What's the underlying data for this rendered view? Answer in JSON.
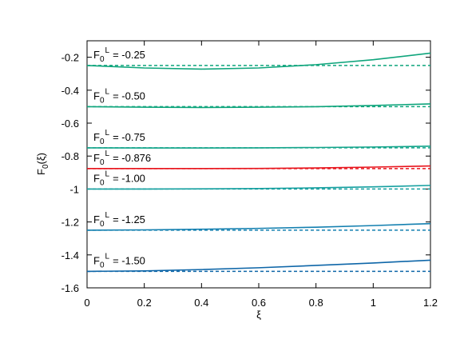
{
  "chart_data": {
    "type": "line",
    "x_label": "ξ",
    "y_label": {
      "base": "F",
      "sub": "0",
      "rest": "(ξ)"
    },
    "x": [
      0,
      0.2,
      0.4,
      0.6,
      0.8,
      1.0,
      1.2
    ],
    "xlim": [
      0,
      1.2
    ],
    "xticks": [
      0,
      0.2,
      0.4,
      0.6,
      0.8,
      1,
      1.2
    ],
    "ylim": [
      -1.6,
      -0.1
    ],
    "yticks": [
      -1.6,
      -1.4,
      -1.2,
      -1,
      -0.8,
      -0.6,
      -0.4,
      -0.2
    ],
    "grid": false,
    "series": [
      {
        "name": {
          "base": "F",
          "sub": "0",
          "sup": "L",
          "text": "= -0.25"
        },
        "color": "#0fa57c",
        "reference": -0.25,
        "values": [
          -0.25,
          -0.265,
          -0.272,
          -0.265,
          -0.245,
          -0.215,
          -0.175
        ]
      },
      {
        "name": {
          "base": "F",
          "sub": "0",
          "sup": "L",
          "text": "= -0.50"
        },
        "color": "#0fa57c",
        "reference": -0.5,
        "values": [
          -0.5,
          -0.503,
          -0.505,
          -0.503,
          -0.5,
          -0.493,
          -0.483
        ]
      },
      {
        "name": {
          "base": "F",
          "sub": "0",
          "sup": "L",
          "text": "= -0.75"
        },
        "color": "#12a48a",
        "reference": -0.75,
        "values": [
          -0.75,
          -0.751,
          -0.751,
          -0.75,
          -0.748,
          -0.745,
          -0.74
        ]
      },
      {
        "name": {
          "base": "F",
          "sub": "0",
          "sup": "L",
          "text": "= -0.876"
        },
        "color": "#e8141c",
        "reference": -0.876,
        "values": [
          -0.876,
          -0.876,
          -0.876,
          -0.875,
          -0.872,
          -0.867,
          -0.86
        ]
      },
      {
        "name": {
          "base": "F",
          "sub": "0",
          "sup": "L",
          "text": "= -1.00"
        },
        "color": "#16a0a0",
        "reference": -1.0,
        "values": [
          -1.0,
          -1.0,
          -0.999,
          -0.997,
          -0.993,
          -0.987,
          -0.978
        ]
      },
      {
        "name": {
          "base": "F",
          "sub": "0",
          "sup": "L",
          "text": "= -1.25"
        },
        "color": "#1480b0",
        "reference": -1.25,
        "values": [
          -1.25,
          -1.248,
          -1.244,
          -1.239,
          -1.232,
          -1.222,
          -1.21
        ]
      },
      {
        "name": {
          "base": "F",
          "sub": "0",
          "sup": "L",
          "text": "= -1.50"
        },
        "color": "#0e66a8",
        "reference": -1.5,
        "values": [
          -1.5,
          -1.497,
          -1.489,
          -1.478,
          -1.464,
          -1.449,
          -1.432
        ]
      }
    ]
  }
}
